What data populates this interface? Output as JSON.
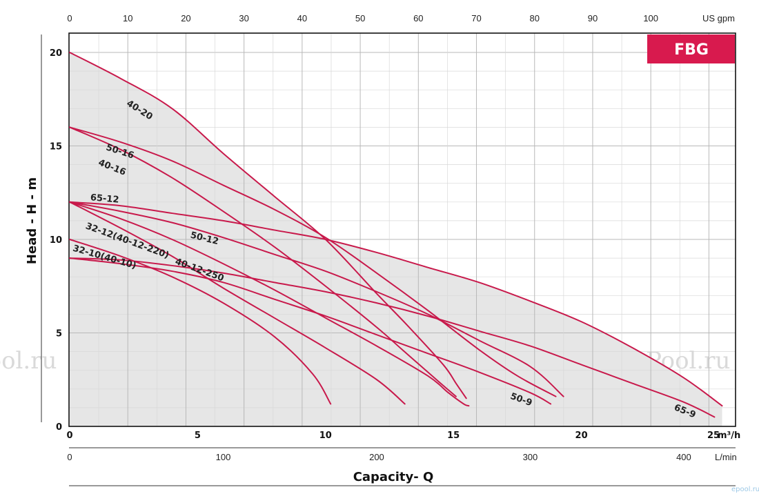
{
  "chart_data": {
    "type": "line",
    "title": "",
    "badge": "FBG",
    "badge_color": "#d81a4e",
    "curve_color": "#c8194b",
    "envelope_fill": "#e6e6e6",
    "ylabel": "Head - H - m",
    "xlabel": "Capacity- Q",
    "xlim": [
      0,
      25.5
    ],
    "ylim": [
      0,
      21
    ],
    "x_unit": "m³/h",
    "grid": true,
    "y_ticks": [
      0,
      5,
      10,
      15,
      20
    ],
    "x_ticks_m3h": [
      {
        "value": 0,
        "label": "0"
      },
      {
        "value": 5,
        "label": "5"
      },
      {
        "value": 10,
        "label": "10"
      },
      {
        "value": 15,
        "label": "15"
      },
      {
        "value": 20,
        "label": "20"
      },
      {
        "value": 25,
        "label": "25"
      }
    ],
    "x_unit_label": "m³/h",
    "top_axis": {
      "unit_label": "US gpm",
      "ticks": [
        {
          "value": 0,
          "label": "0"
        },
        {
          "value": 10,
          "label": "10"
        },
        {
          "value": 20,
          "label": "20"
        },
        {
          "value": 30,
          "label": "30"
        },
        {
          "value": 40,
          "label": "40"
        },
        {
          "value": 50,
          "label": "50"
        },
        {
          "value": 60,
          "label": "60"
        },
        {
          "value": 70,
          "label": "70"
        },
        {
          "value": 80,
          "label": "80"
        },
        {
          "value": 90,
          "label": "90"
        },
        {
          "value": 100,
          "label": "100"
        }
      ]
    },
    "bottom_axis_lmin": {
      "unit_label": "L/min",
      "ticks": [
        {
          "value": 0,
          "label": "0"
        },
        {
          "value": 100,
          "label": "100"
        },
        {
          "value": 200,
          "label": "200"
        },
        {
          "value": 300,
          "label": "300"
        },
        {
          "value": 400,
          "label": "400"
        }
      ]
    },
    "series": [
      {
        "name": "40-20",
        "points": [
          [
            0,
            20
          ],
          [
            2,
            18.6
          ],
          [
            4,
            17
          ],
          [
            6,
            14.6
          ],
          [
            8,
            12.3
          ],
          [
            10,
            10
          ],
          [
            12,
            7.1
          ],
          [
            13.2,
            5.4
          ],
          [
            14.6,
            3.3
          ],
          [
            15.1,
            2.3
          ],
          [
            15.5,
            1.5
          ]
        ],
        "label_pos": [
          2.2,
          17.2
        ],
        "label_angle": 32
      },
      {
        "name": "50-16",
        "points": [
          [
            0,
            16
          ],
          [
            2,
            15.2
          ],
          [
            4,
            14.2
          ],
          [
            6,
            12.9
          ],
          [
            8,
            11.6
          ],
          [
            10,
            10.1
          ],
          [
            12,
            8.2
          ],
          [
            14,
            6.2
          ],
          [
            16,
            4.1
          ],
          [
            17.5,
            2.7
          ],
          [
            19,
            1.6
          ]
        ],
        "label_pos": [
          1.4,
          14.8
        ],
        "label_angle": 18
      },
      {
        "name": "40-16",
        "points": [
          [
            0,
            16
          ],
          [
            2,
            14.8
          ],
          [
            4,
            13.3
          ],
          [
            6,
            11.5
          ],
          [
            8,
            9.6
          ],
          [
            10,
            7.5
          ],
          [
            12,
            5.3
          ],
          [
            13,
            4.1
          ],
          [
            14,
            2.9
          ],
          [
            14.5,
            2.3
          ],
          [
            15.1,
            1.6
          ]
        ],
        "label_pos": [
          1.1,
          14.0
        ],
        "label_angle": 22
      },
      {
        "name": "65-12",
        "points": [
          [
            0,
            12
          ],
          [
            2,
            11.8
          ],
          [
            4,
            11.4
          ],
          [
            6,
            11
          ],
          [
            8,
            10.5
          ],
          [
            10,
            10
          ],
          [
            12,
            9.3
          ],
          [
            14,
            8.5
          ],
          [
            16,
            7.7
          ],
          [
            18,
            6.7
          ],
          [
            20,
            5.6
          ],
          [
            22,
            4.2
          ],
          [
            24,
            2.6
          ],
          [
            25.5,
            1.1
          ]
        ],
        "label_pos": [
          0.8,
          12.1
        ],
        "label_angle": 5
      },
      {
        "name": "50-12",
        "points": [
          [
            0,
            12
          ],
          [
            2,
            11.5
          ],
          [
            4,
            10.9
          ],
          [
            6,
            10.1
          ],
          [
            8,
            9.2
          ],
          [
            10,
            8.3
          ],
          [
            12,
            7.2
          ],
          [
            14,
            6
          ],
          [
            16,
            4.6
          ],
          [
            18,
            3.2
          ],
          [
            19.3,
            1.6
          ]
        ],
        "label_pos": [
          4.7,
          10.1
        ],
        "label_angle": 14
      },
      {
        "name": "40-12-250",
        "points": [
          [
            0,
            12
          ],
          [
            2,
            11.1
          ],
          [
            4,
            10
          ],
          [
            6,
            8.7
          ],
          [
            8,
            7.3
          ],
          [
            10,
            5.8
          ],
          [
            12,
            4.3
          ],
          [
            14,
            2.7
          ],
          [
            14.8,
            1.8
          ],
          [
            15.4,
            1.2
          ],
          [
            15.6,
            1.1
          ]
        ],
        "label_pos": [
          4.1,
          8.7
        ],
        "label_angle": 20
      },
      {
        "name": "32-12(40-12-220)",
        "points": [
          [
            0,
            12
          ],
          [
            2,
            10.6
          ],
          [
            4,
            9.1
          ],
          [
            6,
            7.4
          ],
          [
            8,
            5.8
          ],
          [
            10,
            4.2
          ],
          [
            12,
            2.5
          ],
          [
            13.1,
            1.2
          ]
        ],
        "label_pos": [
          0.6,
          10.6
        ],
        "label_angle": 20
      },
      {
        "name": "32-10(40-10)",
        "points": [
          [
            0,
            10
          ],
          [
            2,
            9.1
          ],
          [
            4,
            8
          ],
          [
            6,
            6.6
          ],
          [
            8,
            4.8
          ],
          [
            9.5,
            2.8
          ],
          [
            10.2,
            1.2
          ]
        ],
        "label_pos": [
          0.1,
          9.4
        ],
        "label_angle": 16
      },
      {
        "name": "50-9",
        "points": [
          [
            0,
            9
          ],
          [
            2,
            8.7
          ],
          [
            4,
            8.3
          ],
          [
            6,
            7.7
          ],
          [
            8,
            6.8
          ],
          [
            10,
            5.9
          ],
          [
            12,
            4.9
          ],
          [
            14,
            3.9
          ],
          [
            16,
            2.9
          ],
          [
            18,
            1.8
          ],
          [
            18.8,
            1.2
          ]
        ],
        "label_pos": [
          17.2,
          1.5
        ],
        "label_angle": 20
      },
      {
        "name": "65-9",
        "points": [
          [
            0,
            9
          ],
          [
            2,
            8.9
          ],
          [
            4,
            8.6
          ],
          [
            6,
            8.2
          ],
          [
            8,
            7.7
          ],
          [
            10,
            7.2
          ],
          [
            12,
            6.6
          ],
          [
            14,
            5.9
          ],
          [
            16,
            5.1
          ],
          [
            18,
            4.3
          ],
          [
            20,
            3.3
          ],
          [
            22,
            2.3
          ],
          [
            24,
            1.3
          ],
          [
            25.2,
            0.5
          ]
        ],
        "label_pos": [
          23.6,
          0.9
        ],
        "label_angle": 22
      }
    ]
  },
  "watermark": "ePool.ru",
  "corner_mark": "epool.ru"
}
